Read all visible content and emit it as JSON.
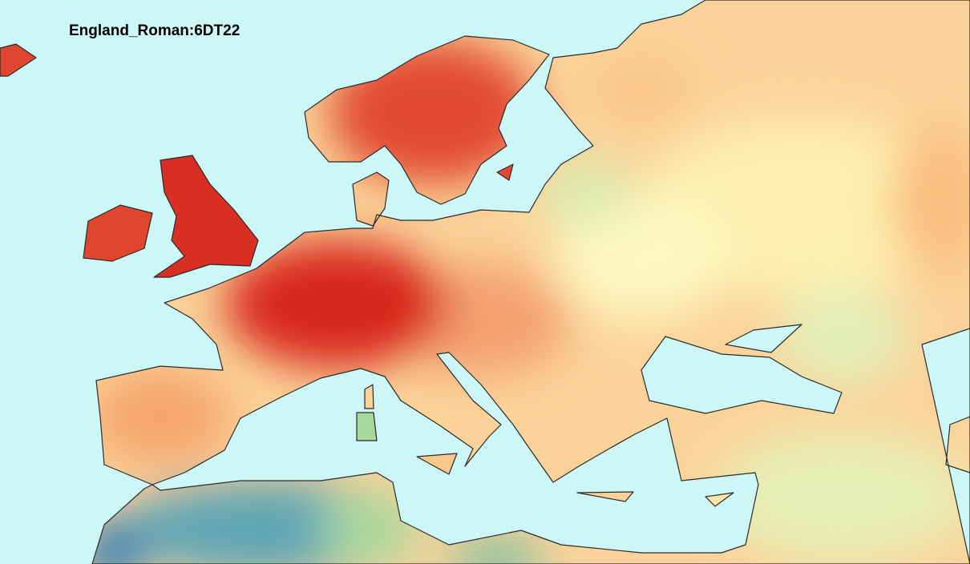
{
  "title": "England_Roman:6DT22"
}
